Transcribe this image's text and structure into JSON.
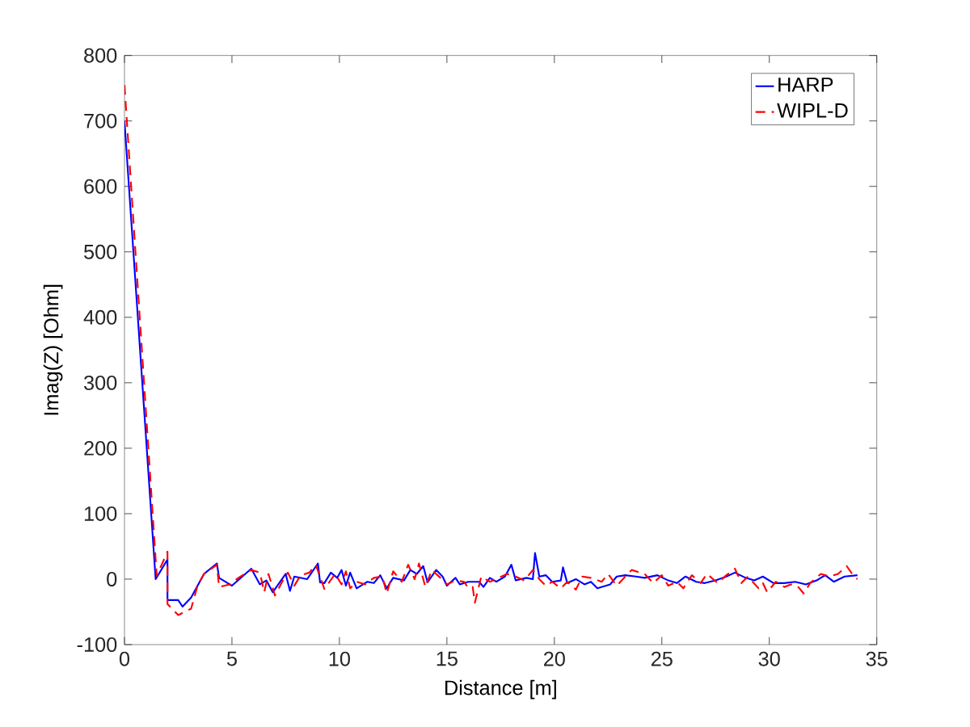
{
  "chart_data": {
    "type": "line",
    "xlabel": "Distance [m]",
    "ylabel": "Imag(Z) [Ohm]",
    "xlim": [
      0,
      35
    ],
    "xticks": [
      0,
      5,
      10,
      15,
      20,
      25,
      30,
      35
    ],
    "ylim": [
      -100,
      800
    ],
    "yticks": [
      -100,
      0,
      100,
      200,
      300,
      400,
      500,
      600,
      700,
      800
    ],
    "grid": false,
    "legend": "top right",
    "marker": "none",
    "series": [
      {
        "name": "HARP",
        "color": "#0000ff",
        "line_style": "solid",
        "x": [
          0,
          1.45,
          2.0,
          2.0,
          2.5,
          2.7,
          3.1,
          3.7,
          4.3,
          4.4,
          5.0,
          5.9,
          6.3,
          6.6,
          6.9,
          7.5,
          7.7,
          7.9,
          8.5,
          9.0,
          9.1,
          9.3,
          9.6,
          9.9,
          10.1,
          10.3,
          10.5,
          10.8,
          11.3,
          11.6,
          11.9,
          12.2,
          12.5,
          13.0,
          13.3,
          13.6,
          13.9,
          14.1,
          14.5,
          14.8,
          15.0,
          15.4,
          15.6,
          16.0,
          16.5,
          16.7,
          17.0,
          17.3,
          17.7,
          18.0,
          18.2,
          18.7,
          19.0,
          19.1,
          19.3,
          19.6,
          19.9,
          20.3,
          20.4,
          20.6,
          21.0,
          21.4,
          21.7,
          22.0,
          22.6,
          22.9,
          23.3,
          23.8,
          24.2,
          24.8,
          25.3,
          25.7,
          26.1,
          26.6,
          27.0,
          27.5,
          28.0,
          28.4,
          28.9,
          29.3,
          29.7,
          30.2,
          30.7,
          31.2,
          31.7,
          32.2,
          32.6,
          33.0,
          33.5,
          34.1
        ],
        "values": [
          700,
          0,
          30,
          -32,
          -32,
          -42,
          -28,
          8,
          24,
          2,
          -10,
          16,
          -8,
          -2,
          -20,
          8,
          -18,
          4,
          0,
          24,
          -5,
          -6,
          10,
          2,
          14,
          -10,
          10,
          -14,
          -4,
          -6,
          6,
          -14,
          2,
          -2,
          14,
          8,
          20,
          -5,
          14,
          4,
          -10,
          2,
          -8,
          -4,
          -4,
          -12,
          2,
          -4,
          4,
          22,
          -2,
          2,
          0,
          40,
          4,
          6,
          -4,
          -2,
          18,
          -6,
          0,
          -8,
          -4,
          -14,
          -8,
          4,
          6,
          4,
          2,
          6,
          -2,
          -6,
          4,
          -4,
          -6,
          -2,
          4,
          10,
          2,
          -2,
          4,
          -6,
          -6,
          -4,
          -8,
          -2,
          6,
          -4,
          4,
          6
        ]
      },
      {
        "name": "WIPL-D",
        "color": "#ff0000",
        "line_style": "dashed",
        "x": [
          0,
          1.5,
          2.0,
          2.0,
          2.5,
          2.8,
          3.1,
          3.4,
          3.7,
          4.3,
          4.4,
          4.9,
          5.3,
          5.9,
          6.3,
          6.5,
          6.7,
          7.0,
          7.4,
          7.6,
          7.9,
          8.2,
          8.6,
          8.9,
          9.3,
          9.8,
          10.1,
          10.3,
          10.5,
          10.8,
          11.2,
          11.6,
          12.0,
          12.2,
          12.5,
          12.9,
          13.2,
          13.5,
          13.7,
          14.0,
          14.3,
          14.7,
          15.0,
          15.4,
          15.8,
          16.0,
          16.2,
          16.3,
          16.6,
          17.0,
          17.4,
          17.8,
          18.2,
          18.6,
          19.0,
          19.3,
          19.6,
          19.9,
          20.3,
          20.6,
          21.0,
          21.3,
          21.7,
          22.2,
          22.5,
          22.9,
          23.3,
          23.6,
          24.2,
          24.6,
          25.0,
          25.3,
          25.7,
          26.0,
          26.4,
          26.8,
          27.1,
          27.6,
          28.0,
          28.4,
          28.7,
          29.0,
          29.5,
          29.7,
          29.9,
          30.3,
          30.7,
          31.0,
          31.3,
          31.6,
          31.9,
          32.4,
          32.8,
          33.2,
          33.6,
          33.9,
          34.1
        ],
        "values": [
          755,
          5,
          42,
          -38,
          -55,
          -50,
          -45,
          -10,
          8,
          22,
          -12,
          -8,
          2,
          14,
          10,
          -20,
          8,
          -25,
          0,
          10,
          -10,
          6,
          10,
          22,
          -15,
          8,
          -8,
          12,
          -14,
          -4,
          -8,
          2,
          4,
          -22,
          12,
          -4,
          22,
          0,
          24,
          -12,
          14,
          2,
          -8,
          -2,
          -4,
          -14,
          -12,
          -36,
          4,
          -4,
          2,
          8,
          4,
          -2,
          14,
          0,
          -10,
          -4,
          -14,
          -4,
          -16,
          4,
          2,
          -4,
          8,
          -10,
          4,
          14,
          8,
          -6,
          6,
          -10,
          -4,
          -14,
          6,
          -6,
          8,
          -6,
          6,
          16,
          -6,
          4,
          -14,
          -6,
          -20,
          -4,
          -12,
          -8,
          -10,
          -22,
          -6,
          8,
          4,
          8,
          20,
          6,
          0
        ]
      }
    ]
  }
}
